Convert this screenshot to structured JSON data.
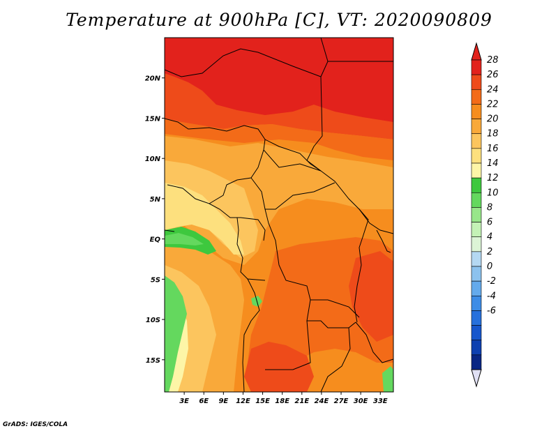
{
  "title": "Temperature at 900hPa [C], VT: 2020090809",
  "credit": "GrADS: IGES/COLA",
  "map": {
    "region": "Central Africa",
    "lon_range": [
      0,
      35
    ],
    "lat_range": [
      -19,
      25
    ],
    "lat_ticks": [
      {
        "value": 20,
        "label": "20N"
      },
      {
        "value": 15,
        "label": "15N"
      },
      {
        "value": 10,
        "label": "10N"
      },
      {
        "value": 5,
        "label": "5N"
      },
      {
        "value": 0,
        "label": "EQ"
      },
      {
        "value": -5,
        "label": "5S"
      },
      {
        "value": -10,
        "label": "10S"
      },
      {
        "value": -15,
        "label": "15S"
      }
    ],
    "lon_ticks": [
      {
        "value": 3,
        "label": "3E"
      },
      {
        "value": 6,
        "label": "6E"
      },
      {
        "value": 9,
        "label": "9E"
      },
      {
        "value": 12,
        "label": "12E"
      },
      {
        "value": 15,
        "label": "15E"
      },
      {
        "value": 18,
        "label": "18E"
      },
      {
        "value": 21,
        "label": "21E"
      },
      {
        "value": 24,
        "label": "24E"
      },
      {
        "value": 27,
        "label": "27E"
      },
      {
        "value": 30,
        "label": "30E"
      },
      {
        "value": 33,
        "label": "33E"
      }
    ]
  },
  "colorbar": {
    "levels": [
      {
        "label": "28",
        "color": "#e2221c"
      },
      {
        "label": "26",
        "color": "#ee4b1a"
      },
      {
        "label": "24",
        "color": "#f36b18"
      },
      {
        "label": "22",
        "color": "#f68d1e"
      },
      {
        "label": "20",
        "color": "#f9a93a"
      },
      {
        "label": "18",
        "color": "#fcc55e"
      },
      {
        "label": "16",
        "color": "#fde07e"
      },
      {
        "label": "14",
        "color": "#fdf5a7"
      },
      {
        "label": "12",
        "color": "#3ec83e"
      },
      {
        "label": "10",
        "color": "#64d85e"
      },
      {
        "label": "8",
        "color": "#98e68a"
      },
      {
        "label": "6",
        "color": "#c4f2b6"
      },
      {
        "label": "4",
        "color": "#dcf4d6"
      },
      {
        "label": "2",
        "color": "#b4d8f2"
      },
      {
        "label": "0",
        "color": "#8cc2ee"
      },
      {
        "label": "-2",
        "color": "#64aaec"
      },
      {
        "label": "-4",
        "color": "#3d8ce6"
      },
      {
        "label": "-6",
        "color": "#2670dc"
      },
      {
        "label": "",
        "color": "#1656cc"
      },
      {
        "label": "",
        "color": "#0d40b0"
      },
      {
        "label": "",
        "color": "#082684"
      }
    ],
    "top_triangle_color": "#e2221c",
    "bottom_triangle_color": "#e0e0f4"
  },
  "field_colors": {
    "t28": "#e2221c",
    "t26": "#ee4b1a",
    "t24": "#f36b18",
    "t22": "#f68d1e",
    "t20": "#f9a93a",
    "t18": "#fcc55e",
    "t16": "#fde07e",
    "t14": "#fdf5a7",
    "t12": "#3ec83e",
    "t10": "#64d85e"
  }
}
